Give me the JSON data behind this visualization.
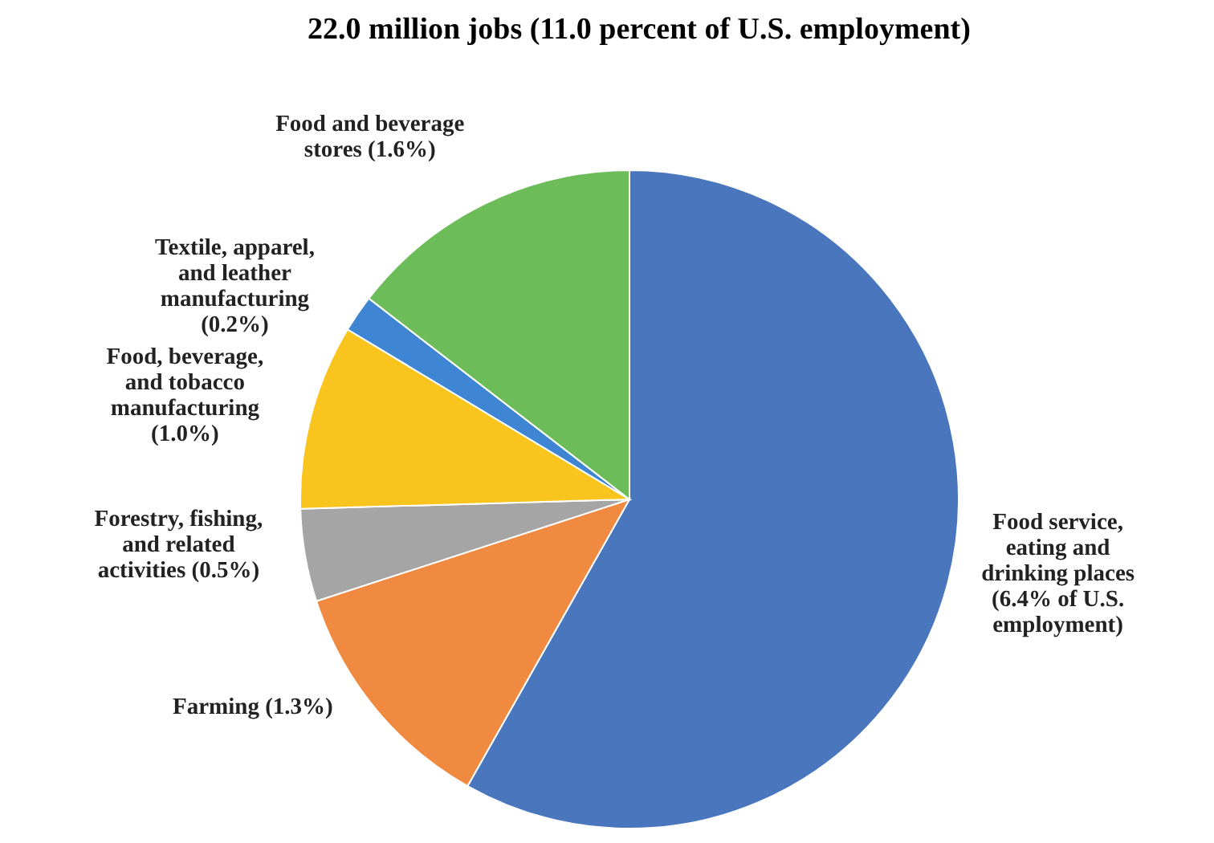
{
  "chart_data": {
    "type": "pie",
    "title": "22.0 million jobs (11.0 percent of U.S. employment)",
    "categories": [
      "Food service, eating and drinking places",
      "Farming",
      "Forestry, fishing, and related activities",
      "Food, beverage, and tobacco manufacturing",
      "Textile, apparel, and leather manufacturing",
      "Food and beverage stores"
    ],
    "values": [
      6.4,
      1.3,
      0.5,
      1.0,
      0.2,
      1.6
    ],
    "value_labels": [
      "(6.4% of U.S. employment)",
      "(1.3%)",
      "(0.5%)",
      "(1.0%)",
      "(0.2%)",
      "(1.6%)"
    ],
    "colors": [
      "#4a76bd",
      "#f08a40",
      "#a5a5a5",
      "#f9c41e",
      "#3e86d4",
      "#6cbd5a"
    ]
  }
}
